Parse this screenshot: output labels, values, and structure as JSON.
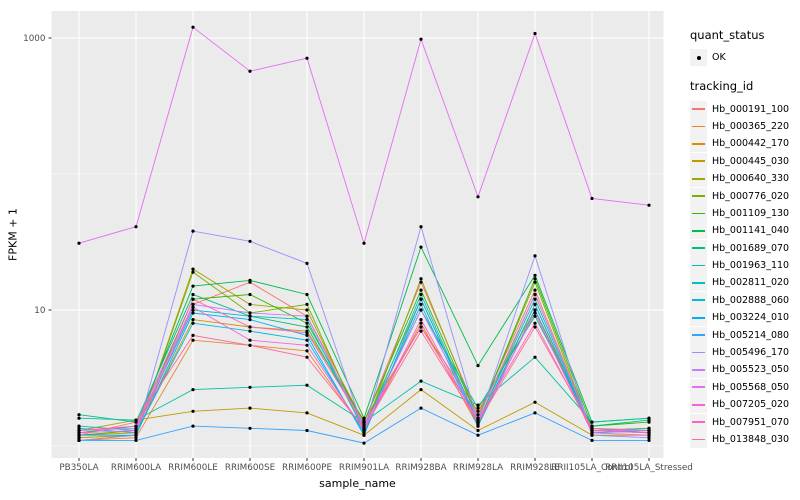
{
  "figure": {
    "background": "#FFFFFF",
    "panel_background": "#EBEBEB",
    "grid_color": "#FFFFFF",
    "tick_mark_color": "#333333",
    "axis_text_color": "#4D4D4D",
    "axis_title_color": "#000000",
    "legend_key_background": "#F2F2F2",
    "point_color": "#000000"
  },
  "legend": {
    "quant_status_title": "quant_status",
    "quant_status_value": "OK",
    "tracking_id_title": "tracking_id"
  },
  "chart_data": {
    "type": "line",
    "title": "",
    "xlabel": "sample_name",
    "ylabel": "FPKM + 1",
    "y_scale": "log10",
    "y_ticks": [
      1000,
      10
    ],
    "y_tick_labels": [
      "1000",
      "10"
    ],
    "y_minor_ticks": [
      100,
      1
    ],
    "ylim": [
      0.82,
      1580
    ],
    "grid": true,
    "legend_position": "right",
    "marker": {
      "shape": "point",
      "color": "#000000",
      "status_label": "OK"
    },
    "categories": [
      "PB350LA",
      "RRIM600LA",
      "RRIM600LE",
      "RRIM600SE",
      "RRIM600PE",
      "RRIM901LA",
      "RRIM928BA",
      "RRIM928LA",
      "RRIM928LE",
      "RRII105LA_Control",
      "RRII105LA_Stressed"
    ],
    "series": [
      {
        "name": "Hb_000191_100",
        "color": "#F8766D",
        "values": [
          1.15,
          1.2,
          11,
          16,
          9,
          1.5,
          16,
          1.7,
          14,
          1.3,
          1.25
        ]
      },
      {
        "name": "Hb_000365_220",
        "color": "#EA8331",
        "values": [
          1.1,
          1.15,
          6,
          5.5,
          5,
          1.3,
          8,
          1.4,
          11,
          1.25,
          1.3
        ]
      },
      {
        "name": "Hb_000442_170",
        "color": "#D89000",
        "values": [
          1.2,
          1.25,
          8.5,
          7.5,
          7,
          1.55,
          7.5,
          1.8,
          10,
          1.35,
          1.3
        ]
      },
      {
        "name": "Hb_000445_030",
        "color": "#C09B00",
        "values": [
          1.3,
          1.55,
          1.8,
          1.9,
          1.75,
          1.2,
          2.6,
          1.3,
          2.1,
          1.2,
          1.2
        ]
      },
      {
        "name": "Hb_000640_330",
        "color": "#A3A500",
        "values": [
          1.15,
          1.2,
          20,
          11,
          10,
          1.4,
          12,
          1.5,
          13,
          1.3,
          1.35
        ]
      },
      {
        "name": "Hb_000776_020",
        "color": "#7CAE00",
        "values": [
          1.1,
          1.2,
          19,
          9.5,
          11,
          1.3,
          17,
          1.6,
          16,
          1.3,
          1.3
        ]
      },
      {
        "name": "Hb_001109_130",
        "color": "#39B600",
        "values": [
          1.2,
          1.3,
          12,
          13,
          8,
          1.5,
          14,
          1.6,
          17,
          1.4,
          1.5
        ]
      },
      {
        "name": "Hb_001141_040",
        "color": "#00BB4E",
        "values": [
          1.25,
          1.4,
          15,
          16.5,
          13,
          1.6,
          29,
          3.9,
          18,
          1.5,
          1.6
        ]
      },
      {
        "name": "Hb_001689_070",
        "color": "#00BF7D",
        "values": [
          1.7,
          1.5,
          13,
          9,
          7.5,
          1.4,
          10,
          1.9,
          9,
          1.4,
          1.55
        ]
      },
      {
        "name": "Hb_001963_110",
        "color": "#00C1A3",
        "values": [
          1.6,
          1.55,
          2.6,
          2.7,
          2.8,
          1.5,
          3.0,
          2.0,
          4.5,
          1.5,
          1.6
        ]
      },
      {
        "name": "Hb_002811_020",
        "color": "#00BFC4",
        "values": [
          1.4,
          1.3,
          10,
          9,
          8.5,
          1.3,
          13,
          1.5,
          12,
          1.3,
          1.35
        ]
      },
      {
        "name": "Hb_002888_060",
        "color": "#00BAE0",
        "values": [
          1.35,
          1.25,
          8,
          7,
          6,
          1.25,
          11,
          1.4,
          10,
          1.25,
          1.3
        ]
      },
      {
        "name": "Hb_003224_010",
        "color": "#00B0F6",
        "values": [
          1.2,
          1.2,
          9.5,
          8.5,
          6.5,
          1.2,
          12,
          1.45,
          11,
          1.3,
          1.25
        ]
      },
      {
        "name": "Hb_005214_080",
        "color": "#35A2FF",
        "values": [
          1.1,
          1.1,
          1.4,
          1.35,
          1.3,
          1.05,
          1.9,
          1.2,
          1.75,
          1.1,
          1.1
        ]
      },
      {
        "name": "Hb_005496_170",
        "color": "#9590FF",
        "values": [
          1.1,
          1.2,
          38,
          32,
          22,
          1.3,
          41,
          1.5,
          25,
          1.2,
          1.15
        ]
      },
      {
        "name": "Hb_005523_050",
        "color": "#C77CFF",
        "values": [
          1.3,
          1.35,
          11,
          9.5,
          9,
          1.35,
          10,
          1.6,
          13,
          1.3,
          1.3
        ]
      },
      {
        "name": "Hb_005568_050",
        "color": "#E76BF3",
        "values": [
          31,
          41,
          1200,
          570,
          710,
          31,
          980,
          68,
          1080,
          66,
          59
        ]
      },
      {
        "name": "Hb_007205_020",
        "color": "#FA62DB",
        "values": [
          1.25,
          1.3,
          10.5,
          6,
          5.5,
          1.3,
          8.5,
          1.5,
          9.5,
          1.25,
          1.2
        ]
      },
      {
        "name": "Hb_007951_070",
        "color": "#FF62BC",
        "values": [
          1.3,
          1.4,
          12,
          7.5,
          6.8,
          1.45,
          7.5,
          1.55,
          8,
          1.3,
          1.25
        ]
      },
      {
        "name": "Hb_013848_030",
        "color": "#FF6A98",
        "values": [
          1.2,
          1.5,
          6.5,
          5.5,
          4.5,
          1.35,
          7,
          1.5,
          7.5,
          1.35,
          1.3
        ]
      }
    ]
  }
}
